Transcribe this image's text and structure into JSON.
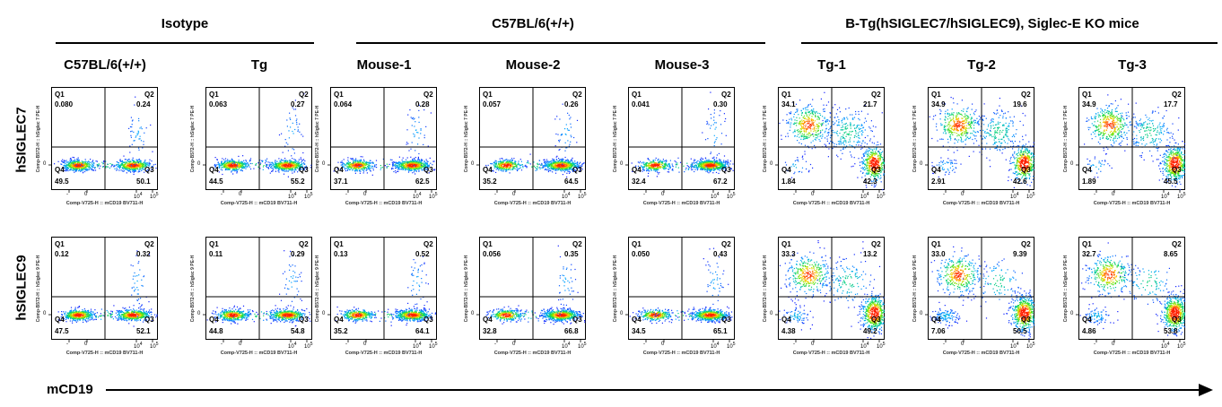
{
  "groups": [
    {
      "title": "Isotype"
    },
    {
      "title": "C57BL/6(+/+)"
    },
    {
      "title": "B-Tg(hSIGLEC7/hSIGLEC9), Siglec-E KO mice"
    }
  ],
  "columns": [
    {
      "title": "C57BL/6(+/+)"
    },
    {
      "title": "Tg"
    },
    {
      "title": "Mouse-1"
    },
    {
      "title": "Mouse-2"
    },
    {
      "title": "Mouse-3"
    },
    {
      "title": "Tg-1"
    },
    {
      "title": "Tg-2"
    },
    {
      "title": "Tg-3"
    }
  ],
  "rows": [
    {
      "label": "hSIGLEC7",
      "y_axis_title": "Comp-B572-H :: hSiglec 7 PE-H"
    },
    {
      "label": "hSIGLEC9",
      "y_axis_title": "Comp-B572-H :: hSiglec 9 PE-H"
    }
  ],
  "x_axis_label": "mCD19",
  "plot_x_axis_title": "Comp-V725-H :: mCD19 BV711-H",
  "x_ticks": [
    {
      "base": "-",
      "exp": ""
    },
    {
      "base": "0",
      "exp": ""
    },
    {
      "base": "10",
      "exp": "4"
    },
    {
      "base": "10",
      "exp": "5"
    }
  ],
  "y_tick_label": "0",
  "quadrant_names": [
    "Q1",
    "Q2",
    "Q3",
    "Q4"
  ],
  "chart_data": {
    "type": "scatter",
    "description_kind": "flow cytometry density plots with quadrant gates",
    "x_variable": "mCD19",
    "quadrants": {
      "hSIGLEC7": [
        {
          "column": "C57BL/6(+/+)",
          "Q1": "0.080",
          "Q2": "0.24",
          "Q3": "50.1",
          "Q4": "49.5"
        },
        {
          "column": "Tg",
          "Q1": "0.063",
          "Q2": "0.27",
          "Q3": "55.2",
          "Q4": "44.5"
        },
        {
          "column": "Mouse-1",
          "Q1": "0.064",
          "Q2": "0.28",
          "Q3": "62.5",
          "Q4": "37.1"
        },
        {
          "column": "Mouse-2",
          "Q1": "0.057",
          "Q2": "0.26",
          "Q3": "64.5",
          "Q4": "35.2"
        },
        {
          "column": "Mouse-3",
          "Q1": "0.041",
          "Q2": "0.30",
          "Q3": "67.2",
          "Q4": "32.4"
        },
        {
          "column": "Tg-1",
          "Q1": "34.1",
          "Q2": "21.7",
          "Q3": "42.3",
          "Q4": "1.84"
        },
        {
          "column": "Tg-2",
          "Q1": "34.9",
          "Q2": "19.6",
          "Q3": "42.6",
          "Q4": "2.91"
        },
        {
          "column": "Tg-3",
          "Q1": "34.9",
          "Q2": "17.7",
          "Q3": "45.5",
          "Q4": "1.89"
        }
      ],
      "hSIGLEC9": [
        {
          "column": "C57BL/6(+/+)",
          "Q1": "0.12",
          "Q2": "0.32",
          "Q3": "52.1",
          "Q4": "47.5"
        },
        {
          "column": "Tg",
          "Q1": "0.11",
          "Q2": "0.29",
          "Q3": "54.8",
          "Q4": "44.8"
        },
        {
          "column": "Mouse-1",
          "Q1": "0.13",
          "Q2": "0.52",
          "Q3": "64.1",
          "Q4": "35.2"
        },
        {
          "column": "Mouse-2",
          "Q1": "0.056",
          "Q2": "0.35",
          "Q3": "66.8",
          "Q4": "32.8"
        },
        {
          "column": "Mouse-3",
          "Q1": "0.050",
          "Q2": "0.43",
          "Q3": "65.1",
          "Q4": "34.5"
        },
        {
          "column": "Tg-1",
          "Q1": "33.3",
          "Q2": "13.2",
          "Q3": "49.2",
          "Q4": "4.38"
        },
        {
          "column": "Tg-2",
          "Q1": "33.0",
          "Q2": "9.39",
          "Q3": "50.5",
          "Q4": "7.06"
        },
        {
          "column": "Tg-3",
          "Q1": "32.7",
          "Q2": "8.65",
          "Q3": "53.8",
          "Q4": "4.86"
        }
      ]
    }
  },
  "colors": {
    "density_low": "#0a1aff",
    "density_mid": "#00d26a",
    "density_high_yellow": "#ffd200",
    "density_peak": "#ff1a00",
    "gate_line": "#000000"
  }
}
